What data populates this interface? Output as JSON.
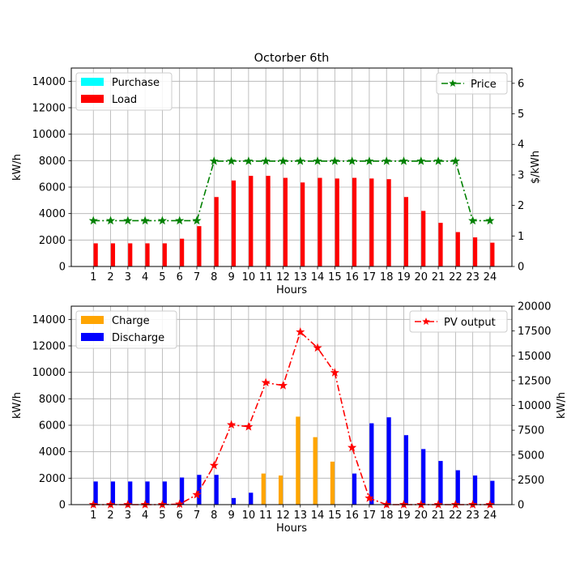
{
  "chart_data": [
    {
      "type": "bar",
      "title": "Octorber 6th",
      "xlabel": "Hours",
      "ylabel": "kW/h",
      "y2label": "$/kWh",
      "categories": [
        "1",
        "2",
        "3",
        "4",
        "5",
        "6",
        "7",
        "8",
        "9",
        "10",
        "11",
        "12",
        "13",
        "14",
        "15",
        "16",
        "17",
        "18",
        "19",
        "20",
        "21",
        "22",
        "23",
        "24"
      ],
      "ylim": [
        0,
        15000
      ],
      "yticks": [
        "0",
        "2000",
        "4000",
        "6000",
        "8000",
        "10000",
        "12000",
        "14000"
      ],
      "y2lim": [
        0,
        6.5
      ],
      "y2ticks": [
        "0",
        "1",
        "2",
        "3",
        "4",
        "5",
        "6"
      ],
      "grid": true,
      "legend_left": "upper-left",
      "legend_right": "upper-right",
      "series": [
        {
          "name": "Purchase",
          "kind": "bar",
          "color": "#00ffff",
          "values": [
            0,
            0,
            0,
            0,
            0,
            0,
            0,
            0,
            0,
            0,
            0,
            0,
            0,
            0,
            0,
            0,
            0,
            0,
            0,
            0,
            0,
            0,
            0,
            0
          ]
        },
        {
          "name": "Load",
          "kind": "bar",
          "color": "#ff0000",
          "values": [
            1750,
            1750,
            1750,
            1750,
            1750,
            2100,
            3050,
            5250,
            6500,
            6850,
            6850,
            6700,
            6350,
            6700,
            6650,
            6700,
            6650,
            6600,
            5250,
            4200,
            3300,
            2600,
            2200,
            1800
          ]
        },
        {
          "name": "Price",
          "kind": "line",
          "axis": "right",
          "color": "#008000",
          "values": [
            1.5,
            1.5,
            1.5,
            1.5,
            1.5,
            1.5,
            1.5,
            3.45,
            3.45,
            3.45,
            3.45,
            3.45,
            3.45,
            3.45,
            3.45,
            3.45,
            3.45,
            3.45,
            3.45,
            3.45,
            3.45,
            3.45,
            1.5,
            1.5
          ]
        }
      ]
    },
    {
      "type": "bar",
      "title": "",
      "xlabel": "Hours",
      "ylabel": "kW/h",
      "y2label": "kW/h",
      "categories": [
        "1",
        "2",
        "3",
        "4",
        "5",
        "6",
        "7",
        "8",
        "9",
        "10",
        "11",
        "12",
        "13",
        "14",
        "15",
        "16",
        "17",
        "18",
        "19",
        "20",
        "21",
        "22",
        "23",
        "24"
      ],
      "ylim": [
        0,
        15000
      ],
      "yticks": [
        "0",
        "2000",
        "4000",
        "6000",
        "8000",
        "10000",
        "12000",
        "14000"
      ],
      "y2lim": [
        0,
        20000
      ],
      "y2ticks": [
        "0",
        "2500",
        "5000",
        "7500",
        "10000",
        "12500",
        "15000",
        "17500",
        "20000"
      ],
      "grid": true,
      "legend_left": "upper-left",
      "legend_right": "upper-right",
      "series": [
        {
          "name": "Charge",
          "kind": "bar",
          "color": "#ffa500",
          "values": [
            0,
            0,
            0,
            0,
            0,
            0,
            0,
            0,
            0,
            0,
            2350,
            2200,
            6650,
            5100,
            3250,
            0,
            0,
            0,
            0,
            0,
            0,
            0,
            0,
            0
          ]
        },
        {
          "name": "Discharge",
          "kind": "bar",
          "color": "#0000ff",
          "values": [
            1750,
            1750,
            1750,
            1750,
            1750,
            2050,
            2250,
            2250,
            500,
            900,
            0,
            0,
            0,
            0,
            0,
            2350,
            6150,
            6600,
            5250,
            4200,
            3300,
            2600,
            2200,
            1800
          ]
        },
        {
          "name": "PV output",
          "kind": "line",
          "axis": "right",
          "color": "#ff0000",
          "values": [
            0,
            0,
            0,
            0,
            0,
            50,
            1000,
            3950,
            8050,
            7850,
            12300,
            12000,
            17400,
            15800,
            13300,
            5750,
            650,
            0,
            0,
            0,
            0,
            0,
            0,
            0
          ]
        }
      ]
    }
  ]
}
